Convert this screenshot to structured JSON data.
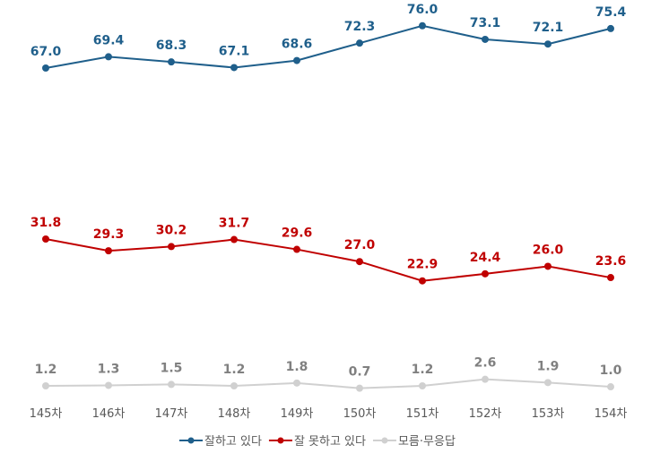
{
  "chart_data": {
    "type": "line",
    "categories": [
      "145차",
      "146차",
      "147차",
      "148차",
      "149차",
      "150차",
      "151차",
      "152차",
      "153차",
      "154차"
    ],
    "series": [
      {
        "name": "잘하고 있다",
        "color": "#1f5f8b",
        "values": [
          67.0,
          69.4,
          68.3,
          67.1,
          68.6,
          72.3,
          76.0,
          73.1,
          72.1,
          75.4
        ]
      },
      {
        "name": "잘 못하고 있다",
        "color": "#c00000",
        "values": [
          31.8,
          29.3,
          30.2,
          31.7,
          29.6,
          27.0,
          22.9,
          24.4,
          26.0,
          23.6
        ]
      },
      {
        "name": "모름·무응답",
        "color": "#d0d0d0",
        "label_color": "#808080",
        "values": [
          1.2,
          1.3,
          1.5,
          1.2,
          1.8,
          0.7,
          1.2,
          2.6,
          1.9,
          1.0
        ]
      }
    ],
    "title": "",
    "xlabel": "",
    "ylabel": "",
    "grid": false,
    "legend": "bottom"
  }
}
